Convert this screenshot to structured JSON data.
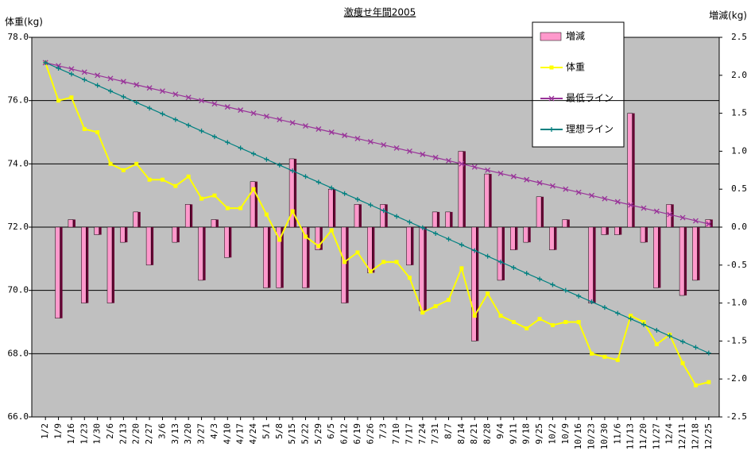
{
  "chart_data": {
    "type": "line",
    "title": "激痩せ年間2005",
    "y_label": "体重(kg)",
    "y2_label": "増減(kg)",
    "categories": [
      "1/2",
      "1/9",
      "1/16",
      "1/23",
      "1/30",
      "2/6",
      "2/13",
      "2/20",
      "2/27",
      "3/6",
      "3/13",
      "3/20",
      "3/27",
      "4/3",
      "4/10",
      "4/17",
      "4/24",
      "5/1",
      "5/8",
      "5/15",
      "5/22",
      "5/29",
      "6/5",
      "6/12",
      "6/19",
      "6/26",
      "7/3",
      "7/10",
      "7/17",
      "7/24",
      "7/31",
      "8/7",
      "8/14",
      "8/21",
      "8/28",
      "9/4",
      "9/11",
      "9/18",
      "9/25",
      "10/2",
      "10/9",
      "10/16",
      "10/23",
      "10/30",
      "11/6",
      "11/13",
      "11/20",
      "11/27",
      "12/4",
      "12/11",
      "12/18",
      "12/25"
    ],
    "ylim": [
      66,
      78
    ],
    "yticks": [
      {
        "value": 78,
        "label": "78.0"
      },
      {
        "value": 76,
        "label": "76.0"
      },
      {
        "value": 74,
        "label": "74.0"
      },
      {
        "value": 72,
        "label": "72.0"
      },
      {
        "value": 70,
        "label": "70.0"
      },
      {
        "value": 68,
        "label": "68.0"
      },
      {
        "value": 66,
        "label": "66.0"
      }
    ],
    "y2lim": [
      -2.5,
      2.5
    ],
    "y2ticks": [
      2.5,
      {
        "value": 2,
        "label": "2.0"
      },
      1.5,
      {
        "value": 1,
        "label": "1.0"
      },
      0.5,
      {
        "value": 0,
        "label": "0.0"
      },
      -0.5,
      {
        "value": -1,
        "label": "-1.0"
      },
      -1.5,
      {
        "value": -2,
        "label": "-2.0"
      },
      -2.5
    ],
    "grid": true,
    "legend": "upper right",
    "series": [
      {
        "name": "増減",
        "kind": "bar",
        "axis": "y2",
        "color": "#ff99cc",
        "values": [
          null,
          -1.2,
          0.1,
          -1.0,
          -0.1,
          -1.0,
          -0.2,
          0.2,
          -0.5,
          0,
          -0.2,
          0.3,
          -0.7,
          0.1,
          -0.4,
          0,
          0.6,
          -0.8,
          -0.8,
          0.9,
          -0.8,
          -0.3,
          0.5,
          -1.0,
          0.3,
          -0.6,
          0.3,
          0,
          -0.5,
          -1.1,
          0.2,
          0.2,
          1.0,
          -1.5,
          0.7,
          -0.7,
          -0.3,
          -0.2,
          0.4,
          -0.3,
          0.1,
          0,
          -1.0,
          -0.1,
          -0.1,
          1.5,
          -0.2,
          -0.8,
          0.3,
          -0.9,
          -0.7,
          0.1
        ]
      },
      {
        "name": "体重",
        "kind": "line",
        "marker": "square",
        "color": "#ffff00",
        "values": [
          77.2,
          76.0,
          76.1,
          75.1,
          75.0,
          74.0,
          73.8,
          74.0,
          73.5,
          73.5,
          73.3,
          73.6,
          72.9,
          73.0,
          72.6,
          72.6,
          73.2,
          72.4,
          71.6,
          72.5,
          71.7,
          71.4,
          71.9,
          70.9,
          71.2,
          70.6,
          70.9,
          70.9,
          70.4,
          69.3,
          69.5,
          69.7,
          70.7,
          69.2,
          69.9,
          69.2,
          69.0,
          68.8,
          69.1,
          68.9,
          69.0,
          69.0,
          68.0,
          67.9,
          67.8,
          69.2,
          69.0,
          68.3,
          68.6,
          67.7,
          67.0,
          67.1
        ]
      },
      {
        "name": "最低ライン",
        "kind": "line",
        "marker": "x",
        "color": "#993399",
        "values": [
          77.2,
          77.1,
          77.0,
          76.9,
          76.8,
          76.7,
          76.6,
          76.5,
          76.4,
          76.3,
          76.2,
          76.1,
          76.0,
          75.9,
          75.8,
          75.7,
          75.6,
          75.5,
          75.4,
          75.3,
          75.2,
          75.1,
          75.0,
          74.9,
          74.8,
          74.7,
          74.6,
          74.5,
          74.4,
          74.3,
          74.2,
          74.1,
          74.0,
          73.9,
          73.8,
          73.7,
          73.6,
          73.5,
          73.4,
          73.3,
          73.2,
          73.1,
          73.0,
          72.9,
          72.8,
          72.7,
          72.6,
          72.5,
          72.4,
          72.3,
          72.2,
          72.1
        ]
      },
      {
        "name": "理想ライン",
        "kind": "line",
        "marker": "plus",
        "color": "#008080",
        "values": [
          77.2,
          77.02,
          76.84,
          76.66,
          76.48,
          76.3,
          76.12,
          75.94,
          75.76,
          75.58,
          75.4,
          75.22,
          75.04,
          74.86,
          74.68,
          74.5,
          74.32,
          74.14,
          73.96,
          73.78,
          73.6,
          73.42,
          73.24,
          73.06,
          72.88,
          72.7,
          72.52,
          72.34,
          72.16,
          71.98,
          71.8,
          71.62,
          71.44,
          71.26,
          71.08,
          70.9,
          70.72,
          70.54,
          70.36,
          70.18,
          70.0,
          69.82,
          69.64,
          69.46,
          69.28,
          69.1,
          68.92,
          68.74,
          68.56,
          68.38,
          68.2,
          68.02
        ]
      }
    ]
  }
}
